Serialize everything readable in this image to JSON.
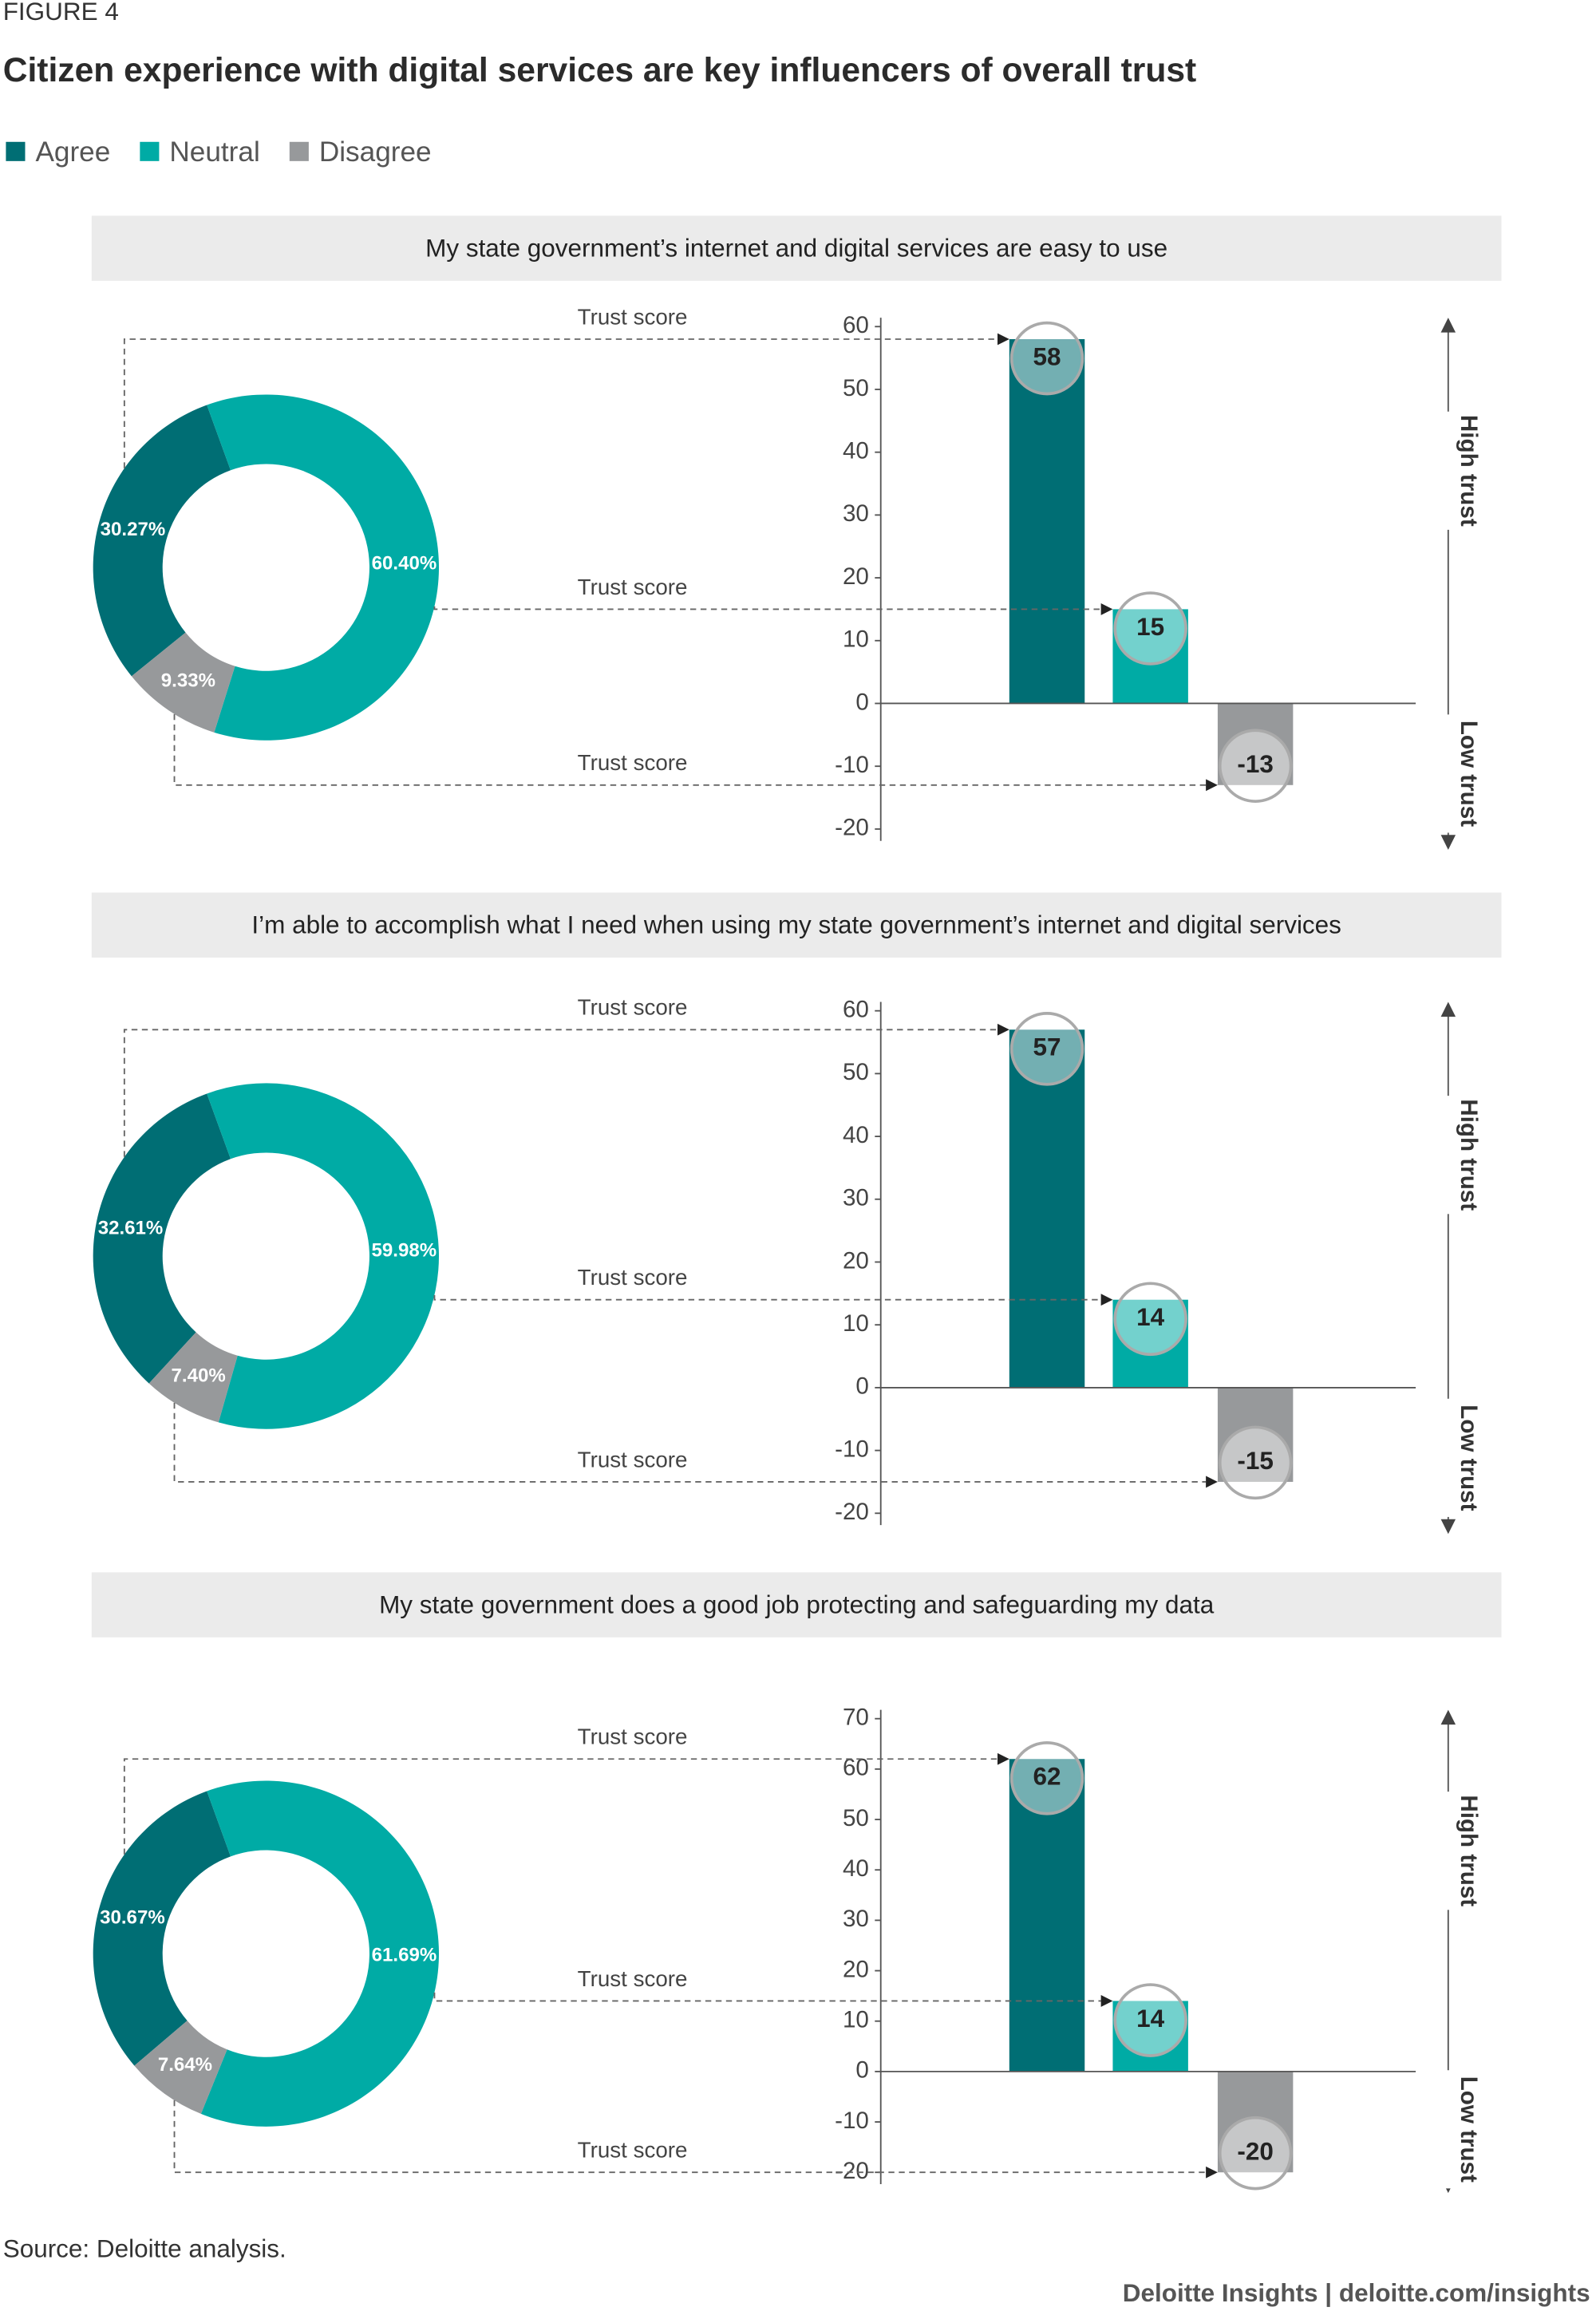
{
  "figure_label": "FIGURE 4",
  "title": "Citizen experience with digital services are key influencers of overall trust",
  "legend": [
    {
      "name": "Agree",
      "color": "#006e74"
    },
    {
      "name": "Neutral",
      "color": "#00aba5"
    },
    {
      "name": "Disagree",
      "color": "#97999b"
    }
  ],
  "chart_data": [
    {
      "type": "pie",
      "title": "My state government’s internet and digital services are easy to use",
      "donut": true,
      "values": [
        30.27,
        60.4,
        9.33
      ],
      "value_labels": [
        "30.27%",
        "60.40%",
        "9.33%"
      ]
    },
    {
      "type": "bar",
      "values": [
        58,
        15,
        -13
      ],
      "ylim": [
        -20,
        60
      ],
      "yticks": [
        -20,
        -10,
        0,
        10,
        20,
        30,
        40,
        50,
        60
      ],
      "annotations": [
        "Trust score",
        "Trust score",
        "Trust score"
      ],
      "high_label": "High trust",
      "low_label": "Low trust"
    },
    {
      "type": "pie",
      "title": "I’m able to accomplish what I need when using my state government’s internet and digital services",
      "donut": true,
      "values": [
        32.61,
        59.98,
        7.4
      ],
      "value_labels": [
        "32.61%",
        "59.98%",
        "7.40%"
      ]
    },
    {
      "type": "bar",
      "values": [
        57,
        14,
        -15
      ],
      "ylim": [
        -20,
        60
      ],
      "yticks": [
        -20,
        -10,
        0,
        10,
        20,
        30,
        40,
        50,
        60
      ],
      "annotations": [
        "Trust score",
        "Trust score",
        "Trust score"
      ],
      "high_label": "High trust",
      "low_label": "Low trust"
    },
    {
      "type": "pie",
      "title": "My state government does a good job protecting and safeguarding my data",
      "donut": true,
      "values": [
        30.67,
        61.69,
        7.64
      ],
      "value_labels": [
        "30.67%",
        "61.69%",
        "7.64%"
      ]
    },
    {
      "type": "bar",
      "values": [
        62,
        14,
        -20
      ],
      "ylim": [
        -20,
        70
      ],
      "yticks": [
        -20,
        -10,
        0,
        10,
        20,
        30,
        40,
        50,
        60,
        70
      ],
      "annotations": [
        "Trust score",
        "Trust score",
        "Trust score"
      ],
      "high_label": "High trust",
      "low_label": "Low trust"
    }
  ],
  "source": "Source: Deloitte analysis.",
  "footer": "Deloitte Insights | deloitte.com/insights"
}
